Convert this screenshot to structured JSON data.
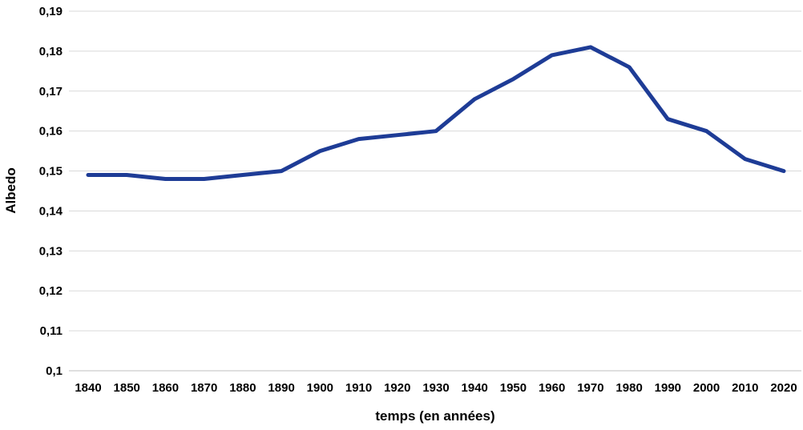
{
  "chart_data": {
    "type": "line",
    "title": "",
    "xlabel": "temps (en années)",
    "ylabel": "Albedo",
    "x": [
      1840,
      1850,
      1860,
      1870,
      1880,
      1890,
      1900,
      1910,
      1920,
      1930,
      1940,
      1950,
      1960,
      1970,
      1980,
      1990,
      2000,
      2010,
      2020
    ],
    "x_tick_labels": [
      "1840",
      "1850",
      "1860",
      "1870",
      "1880",
      "1890",
      "1900",
      "1910",
      "1920",
      "1930",
      "1940",
      "1950",
      "1960",
      "1970",
      "1980",
      "1990",
      "2000",
      "2010",
      "2020"
    ],
    "series": [
      {
        "name": "Albedo",
        "values": [
          0.149,
          0.149,
          0.148,
          0.148,
          0.149,
          0.15,
          0.155,
          0.158,
          0.159,
          0.16,
          0.168,
          0.173,
          0.179,
          0.181,
          0.176,
          0.163,
          0.16,
          0.153,
          0.15
        ]
      }
    ],
    "ylim": [
      0.1,
      0.19
    ],
    "y_ticks": [
      0.1,
      0.11,
      0.12,
      0.13,
      0.14,
      0.15,
      0.16,
      0.17,
      0.18,
      0.19
    ],
    "y_tick_labels": [
      "0,1",
      "0,11",
      "0,12",
      "0,13",
      "0,14",
      "0,15",
      "0,16",
      "0,17",
      "0,18",
      "0,19"
    ],
    "grid": "horizontal",
    "legend": "none",
    "colors": {
      "line": "#1e3c96",
      "gridline": "#d9d9d9",
      "axis_line": "#bfbfbf",
      "text": "#000000"
    }
  }
}
